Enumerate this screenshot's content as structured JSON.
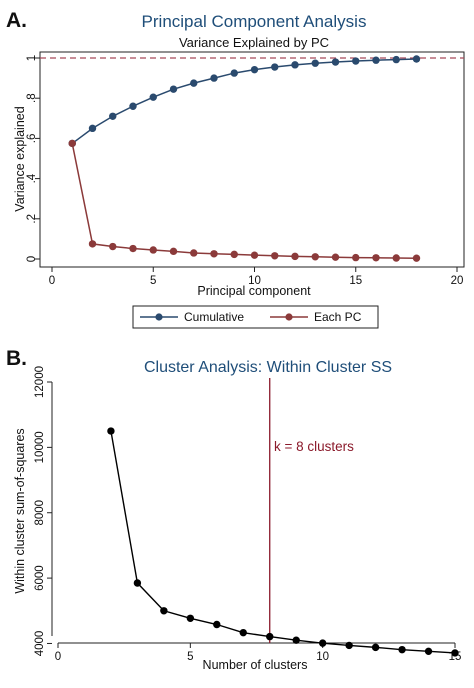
{
  "panels": {
    "a_letter": "A.",
    "b_letter": "B."
  },
  "chart_data": [
    {
      "type": "line",
      "title": "Principal Component Analysis",
      "subtitle": "Variance Explained by PC",
      "xlabel": "Principal component",
      "ylabel": "Variance explained",
      "xlim": [
        0,
        20
      ],
      "ylim": [
        0,
        1
      ],
      "x_ticks": [
        "0",
        "5",
        "10",
        "15",
        "20"
      ],
      "y_ticks": [
        ".2",
        ".4",
        ".6",
        ".8",
        "1"
      ],
      "y_tick_zero": "0",
      "x": [
        1,
        2,
        3,
        4,
        5,
        6,
        7,
        8,
        9,
        10,
        11,
        12,
        13,
        14,
        15,
        16,
        17,
        18
      ],
      "series": [
        {
          "name": "Cumulative",
          "color": "#2a4a6e",
          "values": [
            0.575,
            0.65,
            0.71,
            0.76,
            0.805,
            0.845,
            0.875,
            0.9,
            0.925,
            0.942,
            0.955,
            0.966,
            0.974,
            0.98,
            0.985,
            0.989,
            0.992,
            0.995
          ]
        },
        {
          "name": "Each PC",
          "color": "#8b3a3a",
          "values": [
            0.575,
            0.075,
            0.062,
            0.052,
            0.045,
            0.038,
            0.03,
            0.026,
            0.023,
            0.019,
            0.016,
            0.013,
            0.011,
            0.009,
            0.007,
            0.006,
            0.005,
            0.004
          ]
        }
      ],
      "reference_line": {
        "y": 1,
        "style": "dashed",
        "color": "#a84a5a"
      },
      "legend_position": "bottom",
      "grid": false
    },
    {
      "type": "line",
      "title": "Cluster Analysis: Within Cluster SS",
      "xlabel": "Number of clusters",
      "ylabel": "Within cluster sum-of-squares",
      "xlim": [
        0,
        15
      ],
      "ylim": [
        3800,
        12000
      ],
      "x_ticks": [
        "0",
        "5",
        "10",
        "15"
      ],
      "y_ticks": [
        "4000",
        "6000",
        "8000",
        "10000",
        "12000"
      ],
      "x": [
        2,
        3,
        4,
        5,
        6,
        7,
        8,
        9,
        10,
        11,
        12,
        13,
        14,
        15
      ],
      "series": [
        {
          "color": "#000000",
          "values": [
            10500,
            5850,
            5000,
            4770,
            4580,
            4330,
            4210,
            4100,
            4010,
            3940,
            3880,
            3810,
            3760,
            3710
          ]
        }
      ],
      "vertical_line": {
        "x": 8,
        "color": "#8b1a2b",
        "label": "k = 8 clusters"
      },
      "grid": false
    }
  ]
}
